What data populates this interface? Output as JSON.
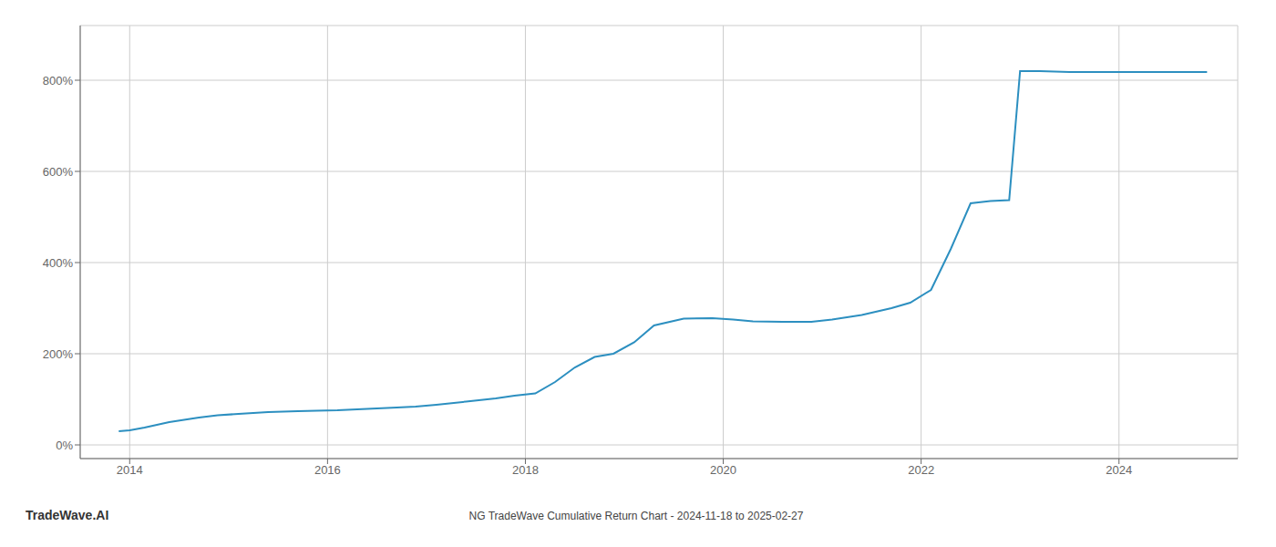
{
  "chart_data": {
    "type": "line",
    "title": "NG TradeWave Cumulative Return Chart - 2024-11-18 to 2025-02-27",
    "annotations": [
      "TradeWave.AI"
    ],
    "color": "#2c8fc0",
    "x": [
      2013.89,
      2014.0,
      2014.15,
      2014.4,
      2014.7,
      2014.89,
      2015.1,
      2015.4,
      2015.7,
      2015.89,
      2016.1,
      2016.4,
      2016.7,
      2016.89,
      2017.1,
      2017.4,
      2017.7,
      2017.89,
      2018.1,
      2018.3,
      2018.5,
      2018.7,
      2018.89,
      2019.1,
      2019.3,
      2019.6,
      2019.89,
      2020.1,
      2020.3,
      2020.6,
      2020.89,
      2021.1,
      2021.4,
      2021.7,
      2021.89,
      2022.1,
      2022.3,
      2022.5,
      2022.7,
      2022.89,
      2023.0,
      2023.2,
      2023.5,
      2023.89,
      2024.0,
      2024.3,
      2024.6,
      2024.89
    ],
    "values": [
      30,
      32,
      38,
      50,
      60,
      65,
      68,
      72,
      74,
      75,
      76,
      79,
      82,
      84,
      88,
      95,
      102,
      108,
      113,
      138,
      170,
      193,
      200,
      225,
      262,
      277,
      278,
      275,
      271,
      270,
      270,
      275,
      285,
      300,
      312,
      340,
      430,
      530,
      535,
      537,
      820,
      820,
      818,
      818,
      818,
      818,
      818,
      818
    ],
    "xlim": [
      2013.5,
      2025.2
    ],
    "ylim": [
      -30,
      920
    ],
    "xticks": [
      2014,
      2016,
      2018,
      2020,
      2022,
      2024
    ],
    "yticks": [
      {
        "value": 0,
        "label": "0%"
      },
      {
        "value": 200,
        "label": "200%"
      },
      {
        "value": 400,
        "label": "400%"
      },
      {
        "value": 600,
        "label": "600%"
      },
      {
        "value": 800,
        "label": "800%"
      }
    ],
    "grid": true
  }
}
